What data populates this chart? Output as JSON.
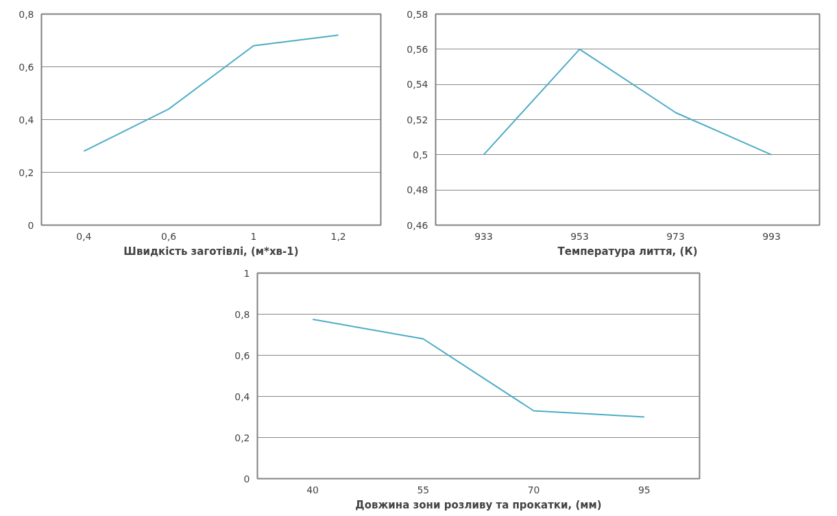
{
  "chart_data": [
    {
      "type": "line",
      "xlabel": "Швидкість заготівлі, (м*хв-1)",
      "categories": [
        "0,4",
        "0,6",
        "1",
        "1,2"
      ],
      "series": [
        {
          "color": "#4bacc6",
          "values": [
            0.28,
            0.44,
            0.68,
            0.72
          ]
        }
      ],
      "ylim": [
        0,
        0.8
      ],
      "yticks": [
        0,
        {
          "value": 0.2,
          "label": "0,2"
        },
        {
          "value": 0.4,
          "label": "0,4"
        },
        {
          "value": 0.6,
          "label": "0,6"
        },
        {
          "value": 0.8,
          "label": "0,8"
        }
      ],
      "grid": "y"
    },
    {
      "type": "line",
      "xlabel": "Температура лиття, (К)",
      "categories": [
        "933",
        "953",
        "973",
        "993"
      ],
      "series": [
        {
          "color": "#4bacc6",
          "values": [
            0.5,
            0.56,
            0.524,
            0.5
          ]
        }
      ],
      "ylim": [
        0.46,
        0.58
      ],
      "yticks": [
        {
          "value": 0.46,
          "label": "0,46"
        },
        {
          "value": 0.48,
          "label": "0,48"
        },
        {
          "value": 0.5,
          "label": "0,5"
        },
        {
          "value": 0.52,
          "label": "0,52"
        },
        {
          "value": 0.54,
          "label": "0,54"
        },
        {
          "value": 0.56,
          "label": "0,56"
        },
        {
          "value": 0.58,
          "label": "0,58"
        }
      ],
      "grid": "y"
    },
    {
      "type": "line",
      "xlabel": "Довжина зони розливу та прокатки, (мм)",
      "categories": [
        "40",
        "55",
        "70",
        "95"
      ],
      "series": [
        {
          "color": "#4bacc6",
          "values": [
            0.775,
            0.68,
            0.33,
            0.3
          ]
        }
      ],
      "ylim": [
        0,
        1
      ],
      "yticks": [
        0,
        {
          "value": 0.2,
          "label": "0,2"
        },
        {
          "value": 0.4,
          "label": "0,4"
        },
        {
          "value": 0.6,
          "label": "0,6"
        },
        {
          "value": 0.8,
          "label": "0,8"
        },
        1
      ],
      "grid": "y"
    }
  ]
}
